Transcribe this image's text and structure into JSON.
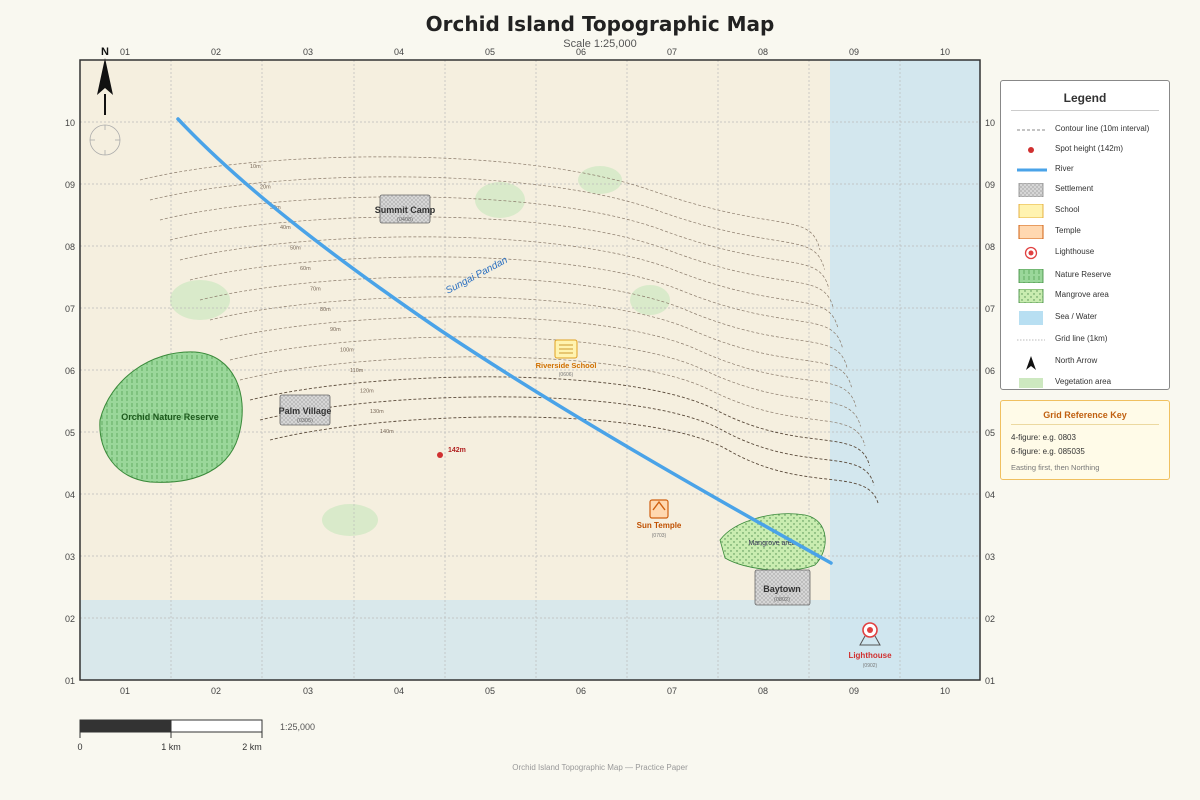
{
  "title": "Orchid Island Topographic Map",
  "subtitle": "Scale 1:25,000",
  "footer": "Orchid Island Topographic Map — Practice Paper",
  "north_label": "N",
  "eastings": [
    "01",
    "02",
    "03",
    "04",
    "05",
    "06",
    "07",
    "08",
    "09",
    "10"
  ],
  "northings": [
    "10",
    "09",
    "08",
    "07",
    "06",
    "05",
    "04",
    "03",
    "02",
    "01"
  ],
  "contour_labels": [
    "10m",
    "20m",
    "30m",
    "40m",
    "50m",
    "60m",
    "70m",
    "80m",
    "90m",
    "100m",
    "110m",
    "120m",
    "130m",
    "140m"
  ],
  "places": {
    "summit_camp": {
      "name": "Summit Camp",
      "ref": "(0408)"
    },
    "palm_village": {
      "name": "Palm Village",
      "ref": "(0305)"
    },
    "riverside_school": {
      "name": "Riverside School",
      "ref": "(0606)"
    },
    "sun_temple": {
      "name": "Sun Temple",
      "ref": "(0703)"
    },
    "baytown": {
      "name": "Baytown",
      "ref": "(0802)"
    },
    "lighthouse": {
      "name": "Lighthouse",
      "ref": "(0902)"
    },
    "nature_reserve": {
      "name": "Orchid Nature Reserve"
    },
    "mangrove": {
      "name": "Mangrove area"
    },
    "river": {
      "name": "Sungai Pandan"
    },
    "spot_height": {
      "label": "142m"
    }
  },
  "legend": {
    "title": "Legend",
    "items": [
      {
        "label": "Contour line (10m interval)",
        "icon": "contour-line-icon"
      },
      {
        "label": "Spot height (142m)",
        "icon": "spot-height-icon"
      },
      {
        "label": "River",
        "icon": "river-icon"
      },
      {
        "label": "Settlement",
        "icon": "settlement-icon"
      },
      {
        "label": "School",
        "icon": "school-icon"
      },
      {
        "label": "Temple",
        "icon": "temple-icon"
      },
      {
        "label": "Lighthouse",
        "icon": "lighthouse-icon"
      },
      {
        "label": "Nature Reserve",
        "icon": "nature-reserve-icon"
      },
      {
        "label": "Mangrove area",
        "icon": "mangrove-icon"
      },
      {
        "label": "Sea / Water",
        "icon": "sea-icon"
      },
      {
        "label": "Grid line (1km)",
        "icon": "grid-line-icon"
      },
      {
        "label": "North Arrow",
        "icon": "north-arrow-icon"
      },
      {
        "label": "Vegetation area",
        "icon": "vegetation-icon"
      }
    ]
  },
  "grid_key": {
    "title": "Grid Reference Key",
    "line1": "4-figure: e.g. 0803",
    "line2": "6-figure: e.g. 085035",
    "note": "Easting first, then Northing"
  },
  "scale_bar": {
    "zero": "0",
    "mid": "1 km",
    "end": "2 km",
    "ratio": "1:25,000"
  },
  "colors": {
    "land": "#f5efdf",
    "sea": "#cfe6ef",
    "river": "#4aa3e8",
    "reserve": "#8fd18f",
    "settlement": "#d8d8d8",
    "school": "#fff3b0",
    "temple": "#ffd8b0",
    "lighthouse": "#e04040",
    "title_school": "#d08000",
    "title_temple": "#c05000"
  }
}
